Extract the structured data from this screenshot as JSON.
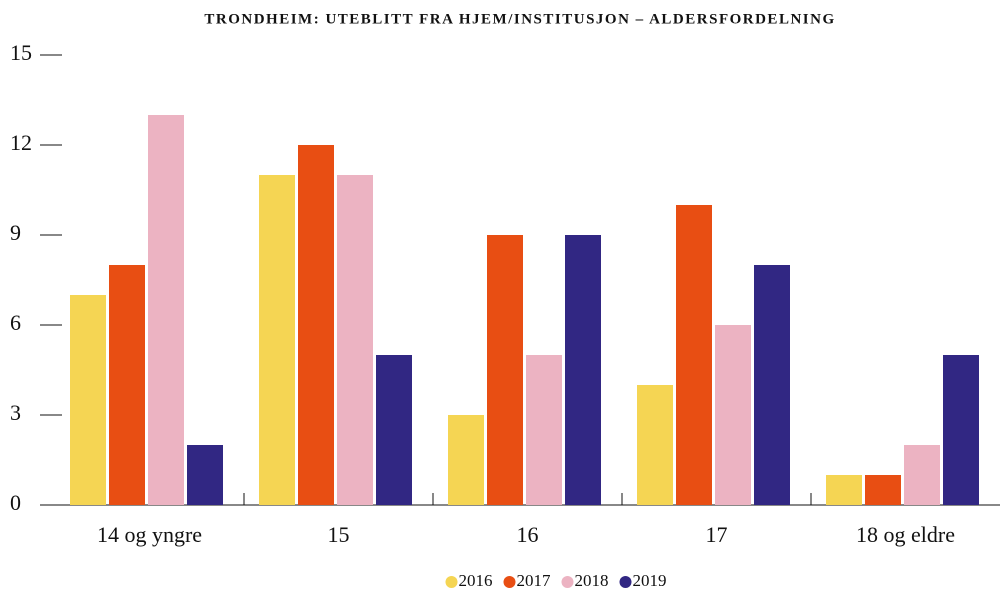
{
  "chart_data": {
    "type": "bar",
    "title": "TRONDHEIM: UTEBLITT FRA HJEM/INSTITUSJON – ALDERSFORDELNING",
    "categories": [
      "14 og yngre",
      "15",
      "16",
      "17",
      "18 og eldre"
    ],
    "series": [
      {
        "name": "2016",
        "color": "#f5d553",
        "values": [
          7,
          11,
          3,
          4,
          1
        ]
      },
      {
        "name": "2017",
        "color": "#e84e13",
        "values": [
          8,
          12,
          9,
          10,
          1
        ]
      },
      {
        "name": "2018",
        "color": "#ecb3c2",
        "values": [
          13,
          11,
          5,
          6,
          2
        ]
      },
      {
        "name": "2019",
        "color": "#312783",
        "values": [
          2,
          5,
          9,
          8,
          5
        ]
      }
    ],
    "ylim": [
      0,
      15
    ],
    "yticks": [
      0,
      3,
      6,
      9,
      12,
      15
    ],
    "legend": "bottom"
  }
}
